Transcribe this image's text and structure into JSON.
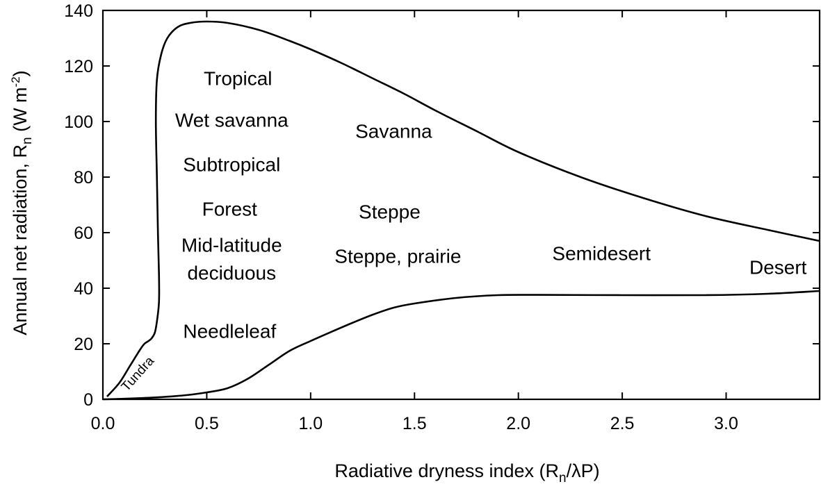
{
  "chart_data": {
    "type": "line",
    "xlabel": {
      "main": "Radiative dryness index (R",
      "sub": "n",
      "tail": "/λP)"
    },
    "ylabel": {
      "main": "Annual net radiation, R",
      "sub": "n",
      "mid": " (W m",
      "sup": "-2",
      "tail": ")"
    },
    "xlim": [
      0,
      3.45
    ],
    "ylim": [
      0,
      140
    ],
    "xticks": [
      "0.0",
      "0.5",
      "1.0",
      "1.5",
      "2.0",
      "2.5",
      "3.0"
    ],
    "xtick_values": [
      0,
      0.5,
      1.0,
      1.5,
      2.0,
      2.5,
      3.0
    ],
    "yticks": [
      "0",
      "20",
      "40",
      "60",
      "80",
      "100",
      "120",
      "140"
    ],
    "ytick_values": [
      0,
      20,
      40,
      60,
      80,
      100,
      120,
      140
    ],
    "series": [
      {
        "x": [
          0.02,
          0.08,
          0.13,
          0.18,
          0.2,
          0.22,
          0.235,
          0.25,
          0.26,
          0.27,
          0.27,
          0.265,
          0.26,
          0.255,
          0.26,
          0.28,
          0.31,
          0.36,
          0.42,
          0.5,
          0.6,
          0.75,
          0.9,
          1.0,
          1.15,
          1.3,
          1.45,
          1.6,
          1.8,
          2.0,
          2.3,
          2.6,
          2.9,
          3.2,
          3.45
        ],
        "y": [
          1,
          6,
          12,
          18,
          20,
          21,
          22,
          24,
          28,
          35,
          45,
          60,
          80,
          100,
          115,
          124,
          130,
          134,
          135.5,
          136,
          135.5,
          133,
          129,
          126,
          121,
          115.5,
          110,
          104,
          96.5,
          89,
          80,
          72.5,
          66,
          61,
          57
        ]
      },
      {
        "x": [
          0,
          0.1,
          0.2,
          0.3,
          0.4,
          0.5,
          0.6,
          0.7,
          0.8,
          0.9,
          1.0,
          1.1,
          1.2,
          1.3,
          1.4,
          1.5,
          1.7,
          1.9,
          2.1,
          2.5,
          2.9,
          3.2,
          3.45
        ],
        "y": [
          0,
          0.2,
          0.5,
          0.9,
          1.5,
          2.5,
          4,
          7.5,
          12.5,
          17.5,
          21,
          24.3,
          27.5,
          30.5,
          33,
          34.5,
          36.5,
          37.5,
          37.6,
          37.5,
          37.5,
          38,
          39
        ]
      }
    ],
    "annotations": [
      {
        "text": "Tropical",
        "x": 0.65,
        "y": 115
      },
      {
        "text": "Wet savanna",
        "x": 0.62,
        "y": 100
      },
      {
        "text": "Subtropical",
        "x": 0.62,
        "y": 84
      },
      {
        "text": "Forest",
        "x": 0.61,
        "y": 68
      },
      {
        "text": "Mid-latitude",
        "x": 0.62,
        "y": 55
      },
      {
        "text": "deciduous",
        "x": 0.62,
        "y": 45
      },
      {
        "text": "Needleleaf",
        "x": 0.61,
        "y": 24
      },
      {
        "text": "Savanna",
        "x": 1.4,
        "y": 96
      },
      {
        "text": "Steppe",
        "x": 1.38,
        "y": 67
      },
      {
        "text": "Steppe, prairie",
        "x": 1.42,
        "y": 51
      },
      {
        "text": "Semidesert",
        "x": 2.4,
        "y": 52
      },
      {
        "text": "Desert",
        "x": 3.25,
        "y": 47
      },
      {
        "text": "Tundra",
        "x": 0.17,
        "y": 9,
        "rotate": -48,
        "small": true
      }
    ]
  }
}
